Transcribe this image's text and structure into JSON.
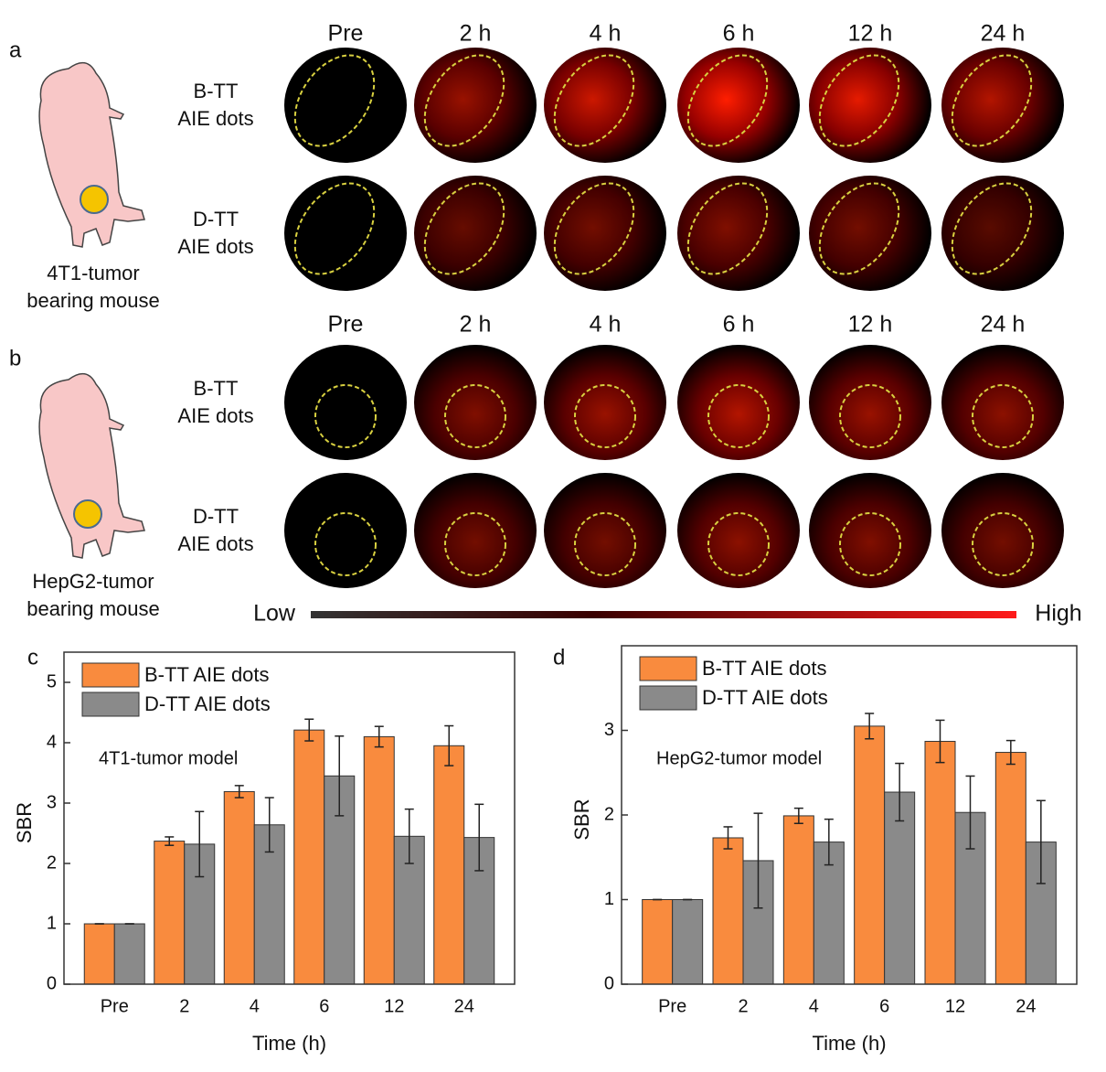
{
  "panels": [
    {
      "label": "a",
      "timepoints": [
        "Pre",
        "2 h",
        "4 h",
        "6 h",
        "12 h",
        "24 h"
      ],
      "rows": [
        [
          "B-TT",
          "AIE dots"
        ],
        [
          "D-TT",
          "AIE dots"
        ]
      ],
      "caption": [
        "4T1-tumor",
        "bearing mouse"
      ]
    },
    {
      "label": "b",
      "timepoints": [
        "Pre",
        "2 h",
        "4 h",
        "6 h",
        "12 h",
        "24 h"
      ],
      "rows": [
        [
          "B-TT",
          "AIE dots"
        ],
        [
          "D-TT",
          "AIE dots"
        ]
      ],
      "caption": [
        "HepG2-tumor",
        "bearing mouse"
      ]
    }
  ],
  "colorbar": {
    "low": "Low",
    "high": "High"
  },
  "chart_data": [
    {
      "type": "bar",
      "panel_label": "c",
      "annotation": "4T1-tumor model",
      "x_label": "Time (h)",
      "y_label": "SBR",
      "categories": [
        "Pre",
        "2",
        "4",
        "6",
        "12",
        "24"
      ],
      "series": [
        {
          "name": "B-TT AIE dots",
          "color": "#f98b3e",
          "values": [
            1,
            2.37,
            3.19,
            4.21,
            4.1,
            3.95
          ],
          "errors": [
            0,
            0.07,
            0.1,
            0.18,
            0.17,
            0.33
          ]
        },
        {
          "name": "D-TT AIE dots",
          "color": "#8a8a8a",
          "values": [
            1,
            2.32,
            2.64,
            3.45,
            2.45,
            2.43
          ],
          "errors": [
            0,
            0.54,
            0.45,
            0.66,
            0.45,
            0.55
          ]
        }
      ],
      "ylim": [
        0,
        5.5
      ],
      "yticks": [
        0,
        1,
        2,
        3,
        4,
        5
      ]
    },
    {
      "type": "bar",
      "panel_label": "d",
      "annotation": "HepG2-tumor model",
      "x_label": "Time (h)",
      "y_label": "SBR",
      "categories": [
        "Pre",
        "2",
        "4",
        "6",
        "12",
        "24"
      ],
      "series": [
        {
          "name": "B-TT AIE dots",
          "color": "#f98b3e",
          "values": [
            1,
            1.73,
            1.99,
            3.05,
            2.87,
            2.74
          ],
          "errors": [
            0,
            0.13,
            0.09,
            0.15,
            0.25,
            0.14
          ]
        },
        {
          "name": "D-TT AIE dots",
          "color": "#8a8a8a",
          "values": [
            1,
            1.46,
            1.68,
            2.27,
            2.03,
            1.68
          ],
          "errors": [
            0,
            0.56,
            0.27,
            0.34,
            0.43,
            0.49
          ]
        }
      ],
      "ylim": [
        0,
        4
      ],
      "yticks": [
        0,
        1,
        2,
        3
      ]
    }
  ]
}
